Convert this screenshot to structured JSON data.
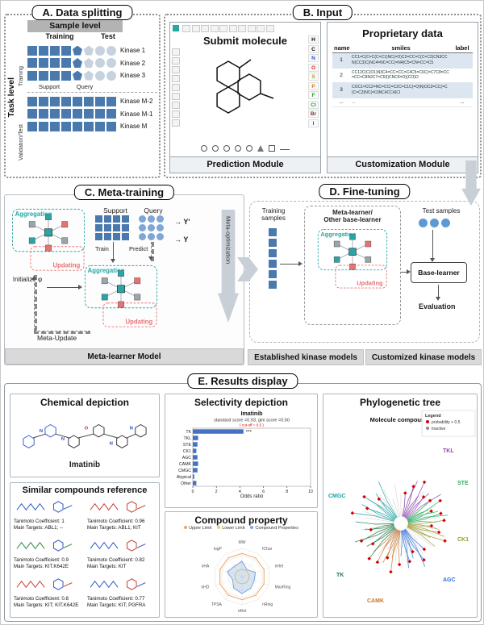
{
  "colors": {
    "sample_dark": "#4a7aad",
    "sample_light": "#c6d2de",
    "teal": "#2aa5a5",
    "coral": "#e57373",
    "node_gray": "#9aa5ad",
    "bar_blue": "#4472c4",
    "arrow_gray": "#c9cfd6",
    "footer_bg": "#d9d9d9",
    "row_highlight": "#dce6f1"
  },
  "panel_a": {
    "title": "A. Data splitting",
    "header": "Sample level",
    "col_training": "Training",
    "col_test": "Test",
    "side_label": "Task level",
    "group_training": "Training",
    "group_validation": "Validation/Test",
    "support": "Support",
    "query": "Query",
    "kinases": [
      "Kinase 1",
      "Kinase 2",
      "Kinase 3",
      "Kinase M-2",
      "Kinase M-1",
      "Kinase M"
    ],
    "row_patterns": [
      [
        "sd",
        "sd",
        "sd",
        "sd",
        "pd",
        "pl",
        "cl",
        "cl"
      ],
      [
        "sd",
        "sd",
        "sd",
        "sd",
        "pd",
        "pl",
        "cl",
        "cl"
      ],
      [
        "sd",
        "sd",
        "sd",
        "sd",
        "pd",
        "pl",
        "cl",
        "cl"
      ],
      [
        "sd",
        "sd",
        "sd",
        "sd",
        "sd",
        "sd",
        "sd",
        "sd"
      ],
      [
        "sd",
        "sd",
        "sd",
        "sd",
        "sd",
        "sd",
        "sd",
        "sd"
      ],
      [
        "sd",
        "sd",
        "sd",
        "sd",
        "sd",
        "sd",
        "sd",
        "sd"
      ]
    ]
  },
  "panel_b": {
    "title": "B. Input",
    "prediction": {
      "heading": "Submit molecule",
      "footer": "Prediction Module",
      "elements": [
        {
          "symbol": "H",
          "color": "#000000"
        },
        {
          "symbol": "C",
          "color": "#000000"
        },
        {
          "symbol": "N",
          "color": "#1f4fd8"
        },
        {
          "symbol": "O",
          "color": "#d81f1f"
        },
        {
          "symbol": "S",
          "color": "#b5a000"
        },
        {
          "symbol": "P",
          "color": "#e07c00"
        },
        {
          "symbol": "F",
          "color": "#22a022"
        },
        {
          "symbol": "Cl",
          "color": "#22a022"
        },
        {
          "symbol": "Br",
          "color": "#8a2b2b"
        },
        {
          "symbol": "I",
          "color": "#7b2bd0"
        }
      ],
      "top_tools": [
        "new-icon",
        "open-icon",
        "save-icon",
        "cut-icon",
        "copy-icon",
        "paste-icon",
        "undo-icon",
        "redo-icon",
        "zoom-icon",
        "help-icon"
      ],
      "side_tools": [
        "select-icon",
        "erase-icon",
        "charge-plus-icon",
        "charge-minus-icon",
        "single-bond-icon",
        "double-bond-icon",
        "triple-bond-icon",
        "stereo-up-icon",
        "stereo-down-icon"
      ],
      "ring_tools": [
        "ring3",
        "ring4",
        "ring5",
        "ring6",
        "benzene",
        "triangle",
        "square",
        "chain"
      ]
    },
    "customization": {
      "heading": "Proprietary data",
      "footer": "Customization Module",
      "table": {
        "headers": [
          "name",
          "smiles",
          "label"
        ],
        "rows": [
          {
            "name": "1",
            "smiles": "CC1=C(C=C(C=C1)NC(=O)C2=CC=C(C=C2)CN3CCN(CC3)C)NC4=NC=CC(=N4)C5=CN=CC=C5",
            "label": ""
          },
          {
            "name": "2",
            "smiles": "CC12C(C(O1)N3C4=CC=CC=C4C5=C6C(=C7C8=CC=CC=C8N2C7=C53)CNC6=O)(CO)O",
            "label": ""
          },
          {
            "name": "3",
            "smiles": "COC1=CC2=NC=CC(=C2C=C1C(=O)N)OC3=CC(=C(C=C3)NC(=O)NC4CC4)Cl",
            "label": ""
          },
          {
            "name": "...",
            "smiles": "...",
            "label": "..."
          }
        ]
      }
    }
  },
  "panel_c": {
    "title": "C. Meta-training",
    "support": "Support",
    "query": "Query",
    "train": "Train",
    "predict": "Predict",
    "y_pred": "→ Y'",
    "y_true": "→ Y",
    "aggregation": "Aggregation",
    "updating": "Updating",
    "initialize": "Initialize φ",
    "meta_update": "Meta-Update",
    "meta_optimization": "Meta-optimization",
    "footer": "Meta-learner Model"
  },
  "panel_d": {
    "title": "D. Fine-tuning",
    "training_samples": "Training samples",
    "meta_learner_line1": "Meta-learner/",
    "meta_learner_line2": "Other base-learner",
    "test_samples": "Test samples",
    "base_learner": "Base-learner",
    "evaluation": "Evaluation",
    "aggregation": "Aggregation",
    "updating": "Updating",
    "footer_left": "Established kinase models",
    "footer_right": "Customized kinase models"
  },
  "panel_e": {
    "title": "E. Results display",
    "chemical": {
      "heading": "Chemical depiction",
      "name": "Imatinib",
      "atoms": [
        "N",
        "N",
        "O",
        "N",
        "N"
      ]
    },
    "similar": {
      "heading": "Similar compounds reference",
      "items": [
        {
          "tc": "Tanimoto Coefficient: 1",
          "targets": "Main Targets: ABL1; --"
        },
        {
          "tc": "Tanimoto Coefficient: 0.96",
          "targets": "Main Targets: ABL1;  KIT"
        },
        {
          "tc": "Tanimoto Coefficient: 0.9",
          "targets": "Main Targets: KIT.K642E"
        },
        {
          "tc": "Tanimoto Coefficient: 0.82",
          "targets": "Main Targets: KIT"
        },
        {
          "tc": "Tanimoto Coefficient: 0.8",
          "targets": "Main Targets: KIT;  KIT.K642E"
        },
        {
          "tc": "Tanimoto Coefficient: 0.77",
          "targets": "Main Targets: KIT;  PGFRA"
        }
      ]
    },
    "selectivity_heading": "Selectivity depiction",
    "property_heading": "Compound property",
    "phylo": {
      "heading": "Phylogenetic tree",
      "compound": "Molecule compound1",
      "legend_title": "Legend",
      "legend_items": [
        {
          "label": "probability > 0.5",
          "color": "#d40000"
        },
        {
          "label": "Inactive",
          "color": "#8c8c8c"
        }
      ],
      "groups": [
        {
          "label": "TKL",
          "color": "#8e44ad"
        },
        {
          "label": "STE",
          "color": "#27ae60"
        },
        {
          "label": "CK1",
          "color": "#9a9a2a"
        },
        {
          "label": "CMGC",
          "color": "#17a2a2"
        },
        {
          "label": "AGC",
          "color": "#2e6fd8"
        },
        {
          "label": "CAMK",
          "color": "#c9742d"
        },
        {
          "label": "TK",
          "color": "#1e7a46"
        }
      ]
    }
  },
  "chart_data": [
    {
      "type": "bar",
      "title": "Imatinib",
      "subtitle": "standard score =0.93, gini score =0.50",
      "note": "( cut-off = 0.5 )",
      "orientation": "horizontal",
      "categories": [
        "TK",
        "TKL",
        "STE",
        "CK1",
        "AGC",
        "CAMK",
        "CMGC",
        "Atypical",
        "Other"
      ],
      "values": [
        4.3,
        0.45,
        0.4,
        0.3,
        0.4,
        0.45,
        0.4,
        0.12,
        0.3
      ],
      "annotation": "***",
      "xlabel": "Odds ratio",
      "xlim": [
        0,
        10
      ],
      "xticks": [
        0,
        2,
        4,
        6,
        8,
        10
      ],
      "bar_color": "#4472c4"
    },
    {
      "type": "radar",
      "title": "Compound property",
      "axes": [
        "MW",
        "fChar",
        "nHet",
        "MaxRing",
        "nRing",
        "nRot",
        "TPSA",
        "nHD",
        "nHA",
        "logP"
      ],
      "series": [
        {
          "name": "Upper Limit",
          "color": "#f2a35c",
          "values": [
            0.82,
            0.82,
            0.82,
            0.82,
            0.82,
            0.82,
            0.82,
            0.82,
            0.82,
            0.82
          ]
        },
        {
          "name": "Lower Limit",
          "color": "#f7d154",
          "values": [
            0.26,
            0.26,
            0.26,
            0.26,
            0.26,
            0.26,
            0.26,
            0.26,
            0.26,
            0.26
          ]
        },
        {
          "name": "Compound Properties",
          "color": "#7da7d9",
          "values": [
            0.55,
            0.3,
            0.5,
            0.45,
            0.52,
            0.6,
            0.5,
            0.35,
            0.55,
            0.45
          ]
        }
      ]
    }
  ]
}
